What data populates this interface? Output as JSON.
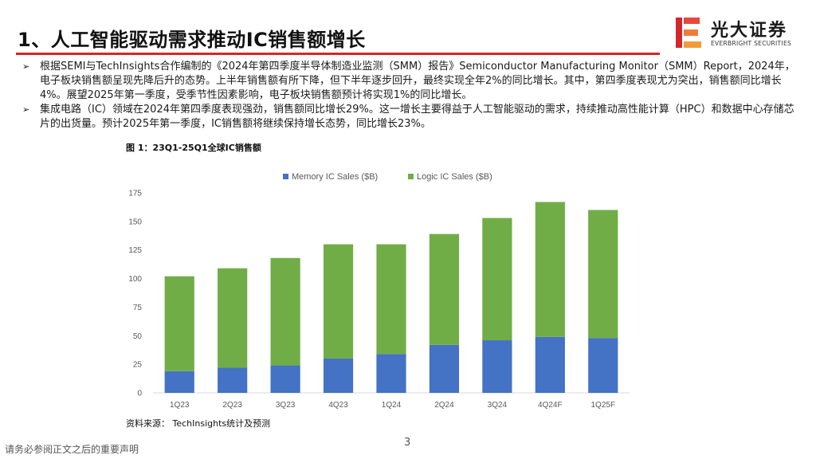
{
  "slide": {
    "title": "1、人工智能驱动需求推动IC销售额增长",
    "footer_note": "请务必参阅正文之后的重要声明",
    "page_number": "3"
  },
  "brand": {
    "name": "光大证券",
    "sub": "EVERBRIGHT SECURITIES",
    "accent_color": "#d4262b"
  },
  "bullets": [
    {
      "marker": "➢",
      "text": "根据SEMI与TechInsights合作编制的《2024年第四季度半导体制造业监测（SMM）报告》Semiconductor Manufacturing Monitor（SMM）Report，2024年，电子板块销售额呈现先降后升的态势。上半年销售额有所下降，但下半年逐步回升，最终实现全年2%的同比增长。其中，第四季度表现尤为突出，销售额同比增长4%。展望2025年第一季度，受季节性因素影响，电子板块销售额预计将实现1%的同比增长。"
    },
    {
      "marker": "➢",
      "text": "集成电路（IC）领域在2024年第四季度表现强劲，销售额同比增长29%。这一增长主要得益于人工智能驱动的需求，持续推动高性能计算（HPC）和数据中心存储芯片的出货量。预计2025年第一季度，IC销售额将继续保持增长态势，同比增长23%。"
    }
  ],
  "figure": {
    "caption": "图 1：23Q1-25Q1全球IC销售额",
    "source": "资料来源：  TechInsights统计及预测"
  },
  "chart_data": {
    "type": "bar",
    "stacked": true,
    "title": "",
    "xlabel": "",
    "ylabel": "",
    "categories": [
      "1Q23",
      "2Q23",
      "3Q23",
      "4Q23",
      "1Q24",
      "2Q24",
      "3Q24",
      "4Q24F",
      "1Q25F"
    ],
    "series": [
      {
        "name": "Memory IC Sales ($B)",
        "color": "#4472c4",
        "values": [
          19,
          22,
          24,
          30,
          34,
          42,
          46,
          49,
          48
        ]
      },
      {
        "name": "Logic IC Sales ($B)",
        "color": "#70ad47",
        "values": [
          83,
          87,
          94,
          100,
          96,
          97,
          107,
          118,
          112
        ]
      }
    ],
    "ylim": [
      0,
      175
    ],
    "yticks": [
      0,
      25,
      50,
      75,
      100,
      125,
      150,
      175
    ],
    "grid": false,
    "legend": "top-center"
  }
}
